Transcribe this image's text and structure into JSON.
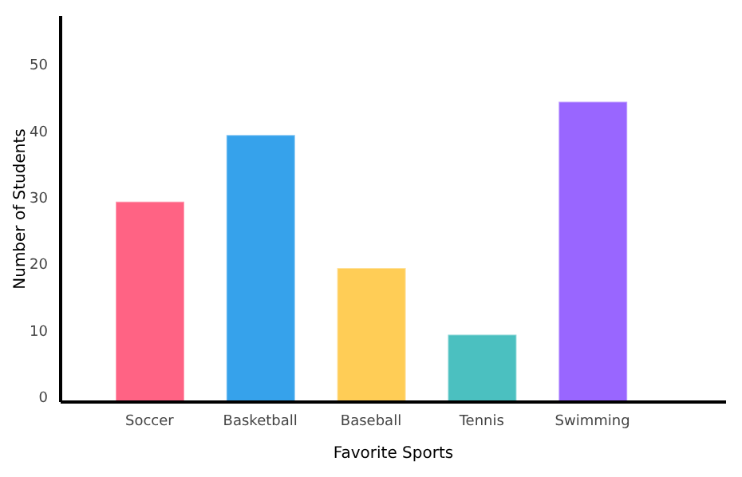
{
  "chart_data": {
    "type": "bar",
    "xlabel": "Favorite Sports",
    "ylabel": "Number of Students",
    "categories": [
      "Soccer",
      "Basketball",
      "Baseball",
      "Tennis",
      "Swimming"
    ],
    "values": [
      30,
      40,
      20,
      10,
      45
    ],
    "colors": [
      "#ff6384",
      "#36a2eb",
      "#ffcd56",
      "#4bc0c0",
      "#9966ff"
    ],
    "ylim": [
      0,
      58
    ],
    "yticks": [
      0,
      10,
      20,
      30,
      40,
      50
    ],
    "grid": false,
    "legend": false
  }
}
